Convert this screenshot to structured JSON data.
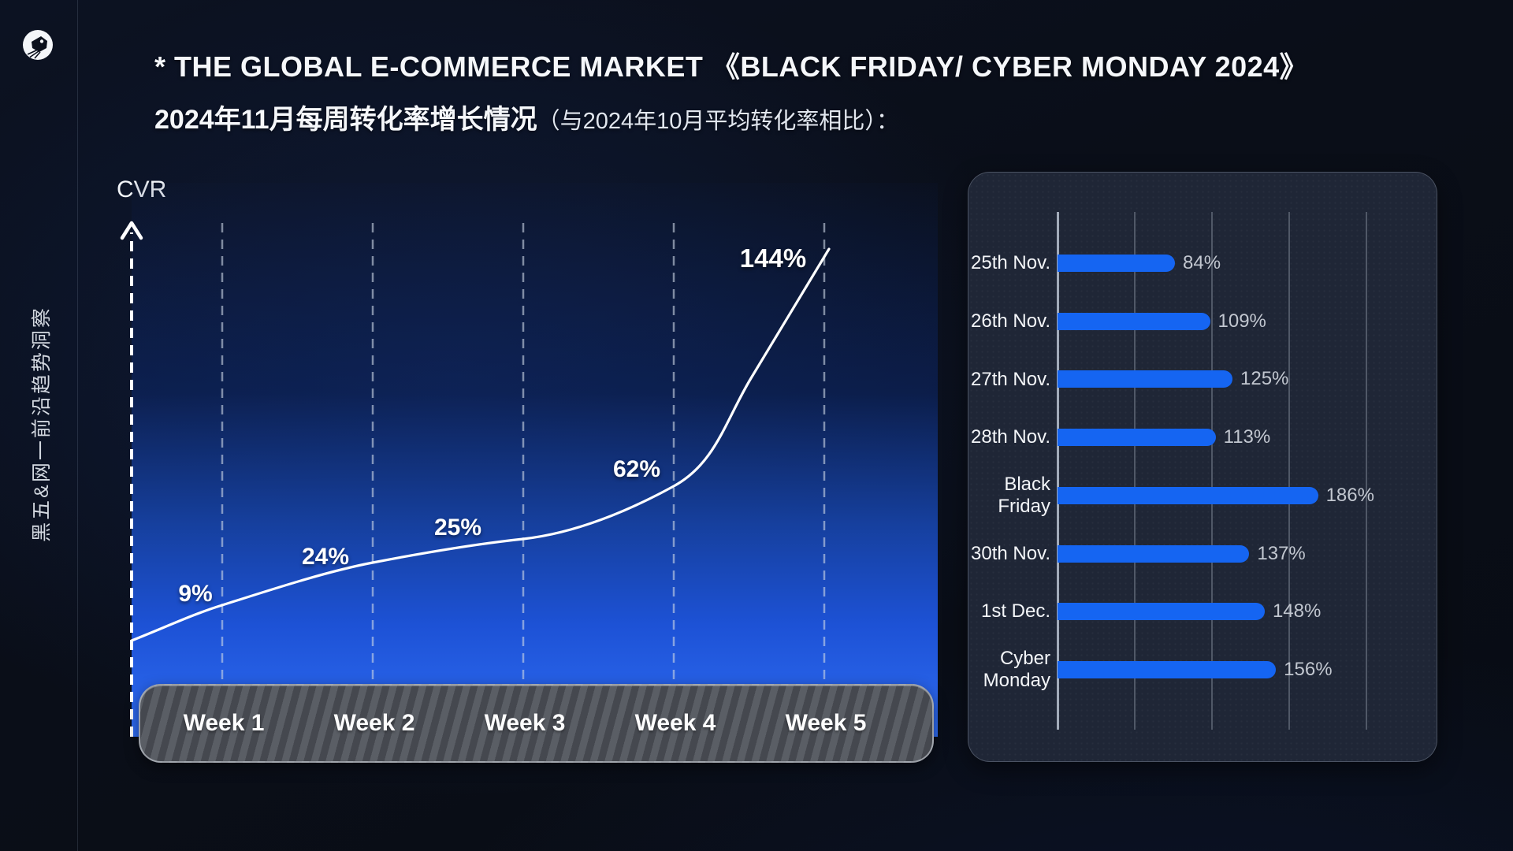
{
  "page": {
    "accent_blue": "#1565f2",
    "background": "#0a0e17"
  },
  "sidebar": {
    "logo_icon": "bird-head-logo",
    "vertical_text": "黑五&网一前沿趋势洞察"
  },
  "header": {
    "title_line1": "* THE GLOBAL E-COMMERCE MARKET 《BLACK FRIDAY/ CYBER MONDAY 2024》",
    "title_line2_main": "2024年11月每周转化率增长情况",
    "title_line2_note": "（与2024年10月平均转化率相比）："
  },
  "line_chart": {
    "y_axis_label": "CVR",
    "weeks": [
      "Week 1",
      "Week 2",
      "Week 3",
      "Week 4",
      "Week 5"
    ],
    "point_labels": [
      "9%",
      "24%",
      "25%",
      "62%",
      "144%"
    ]
  },
  "bar_chart": {
    "rows": [
      {
        "label": "25th Nov.",
        "value": 84,
        "value_label": "84%"
      },
      {
        "label": "26th Nov.",
        "value": 109,
        "value_label": "109%"
      },
      {
        "label": "27th Nov.",
        "value": 125,
        "value_label": "125%"
      },
      {
        "label": "28th Nov.",
        "value": 113,
        "value_label": "113%"
      },
      {
        "label": "Black\nFriday",
        "value": 186,
        "value_label": "186%"
      },
      {
        "label": "30th Nov.",
        "value": 137,
        "value_label": "137%"
      },
      {
        "label": "1st Dec.",
        "value": 148,
        "value_label": "148%"
      },
      {
        "label": "Cyber\nMonday",
        "value": 156,
        "value_label": "156%"
      }
    ]
  },
  "chart_data": [
    {
      "type": "line",
      "title": "2024年11月每周转化率增长情况（与2024年10月平均转化率相比）",
      "x": [
        "Week 1",
        "Week 2",
        "Week 3",
        "Week 4",
        "Week 5"
      ],
      "y": [
        9,
        24,
        25,
        62,
        144
      ],
      "unit": "%",
      "ylabel": "CVR",
      "xlabel": "",
      "annotations": [
        "9%",
        "24%",
        "25%",
        "62%",
        "144%"
      ],
      "grid": "dashed vertical gridlines, dashed y-axis with arrow",
      "legend_position": "none",
      "line_color": "#ffffff",
      "area_background": "blue gradient dark-top to bright-bottom"
    },
    {
      "type": "bar",
      "orientation": "horizontal",
      "categories": [
        "25th Nov.",
        "26th Nov.",
        "27th Nov.",
        "28th Nov.",
        "Black Friday",
        "30th Nov.",
        "1st Dec.",
        "Cyber Monday"
      ],
      "values": [
        84,
        109,
        125,
        113,
        186,
        137,
        148,
        156
      ],
      "unit": "%",
      "data_labels": [
        "84%",
        "109%",
        "125%",
        "113%",
        "186%",
        "137%",
        "148%",
        "156%"
      ],
      "bar_color": "#1565f2",
      "xlim": [
        0,
        200
      ],
      "grid": "vertical gridlines on"
    }
  ]
}
